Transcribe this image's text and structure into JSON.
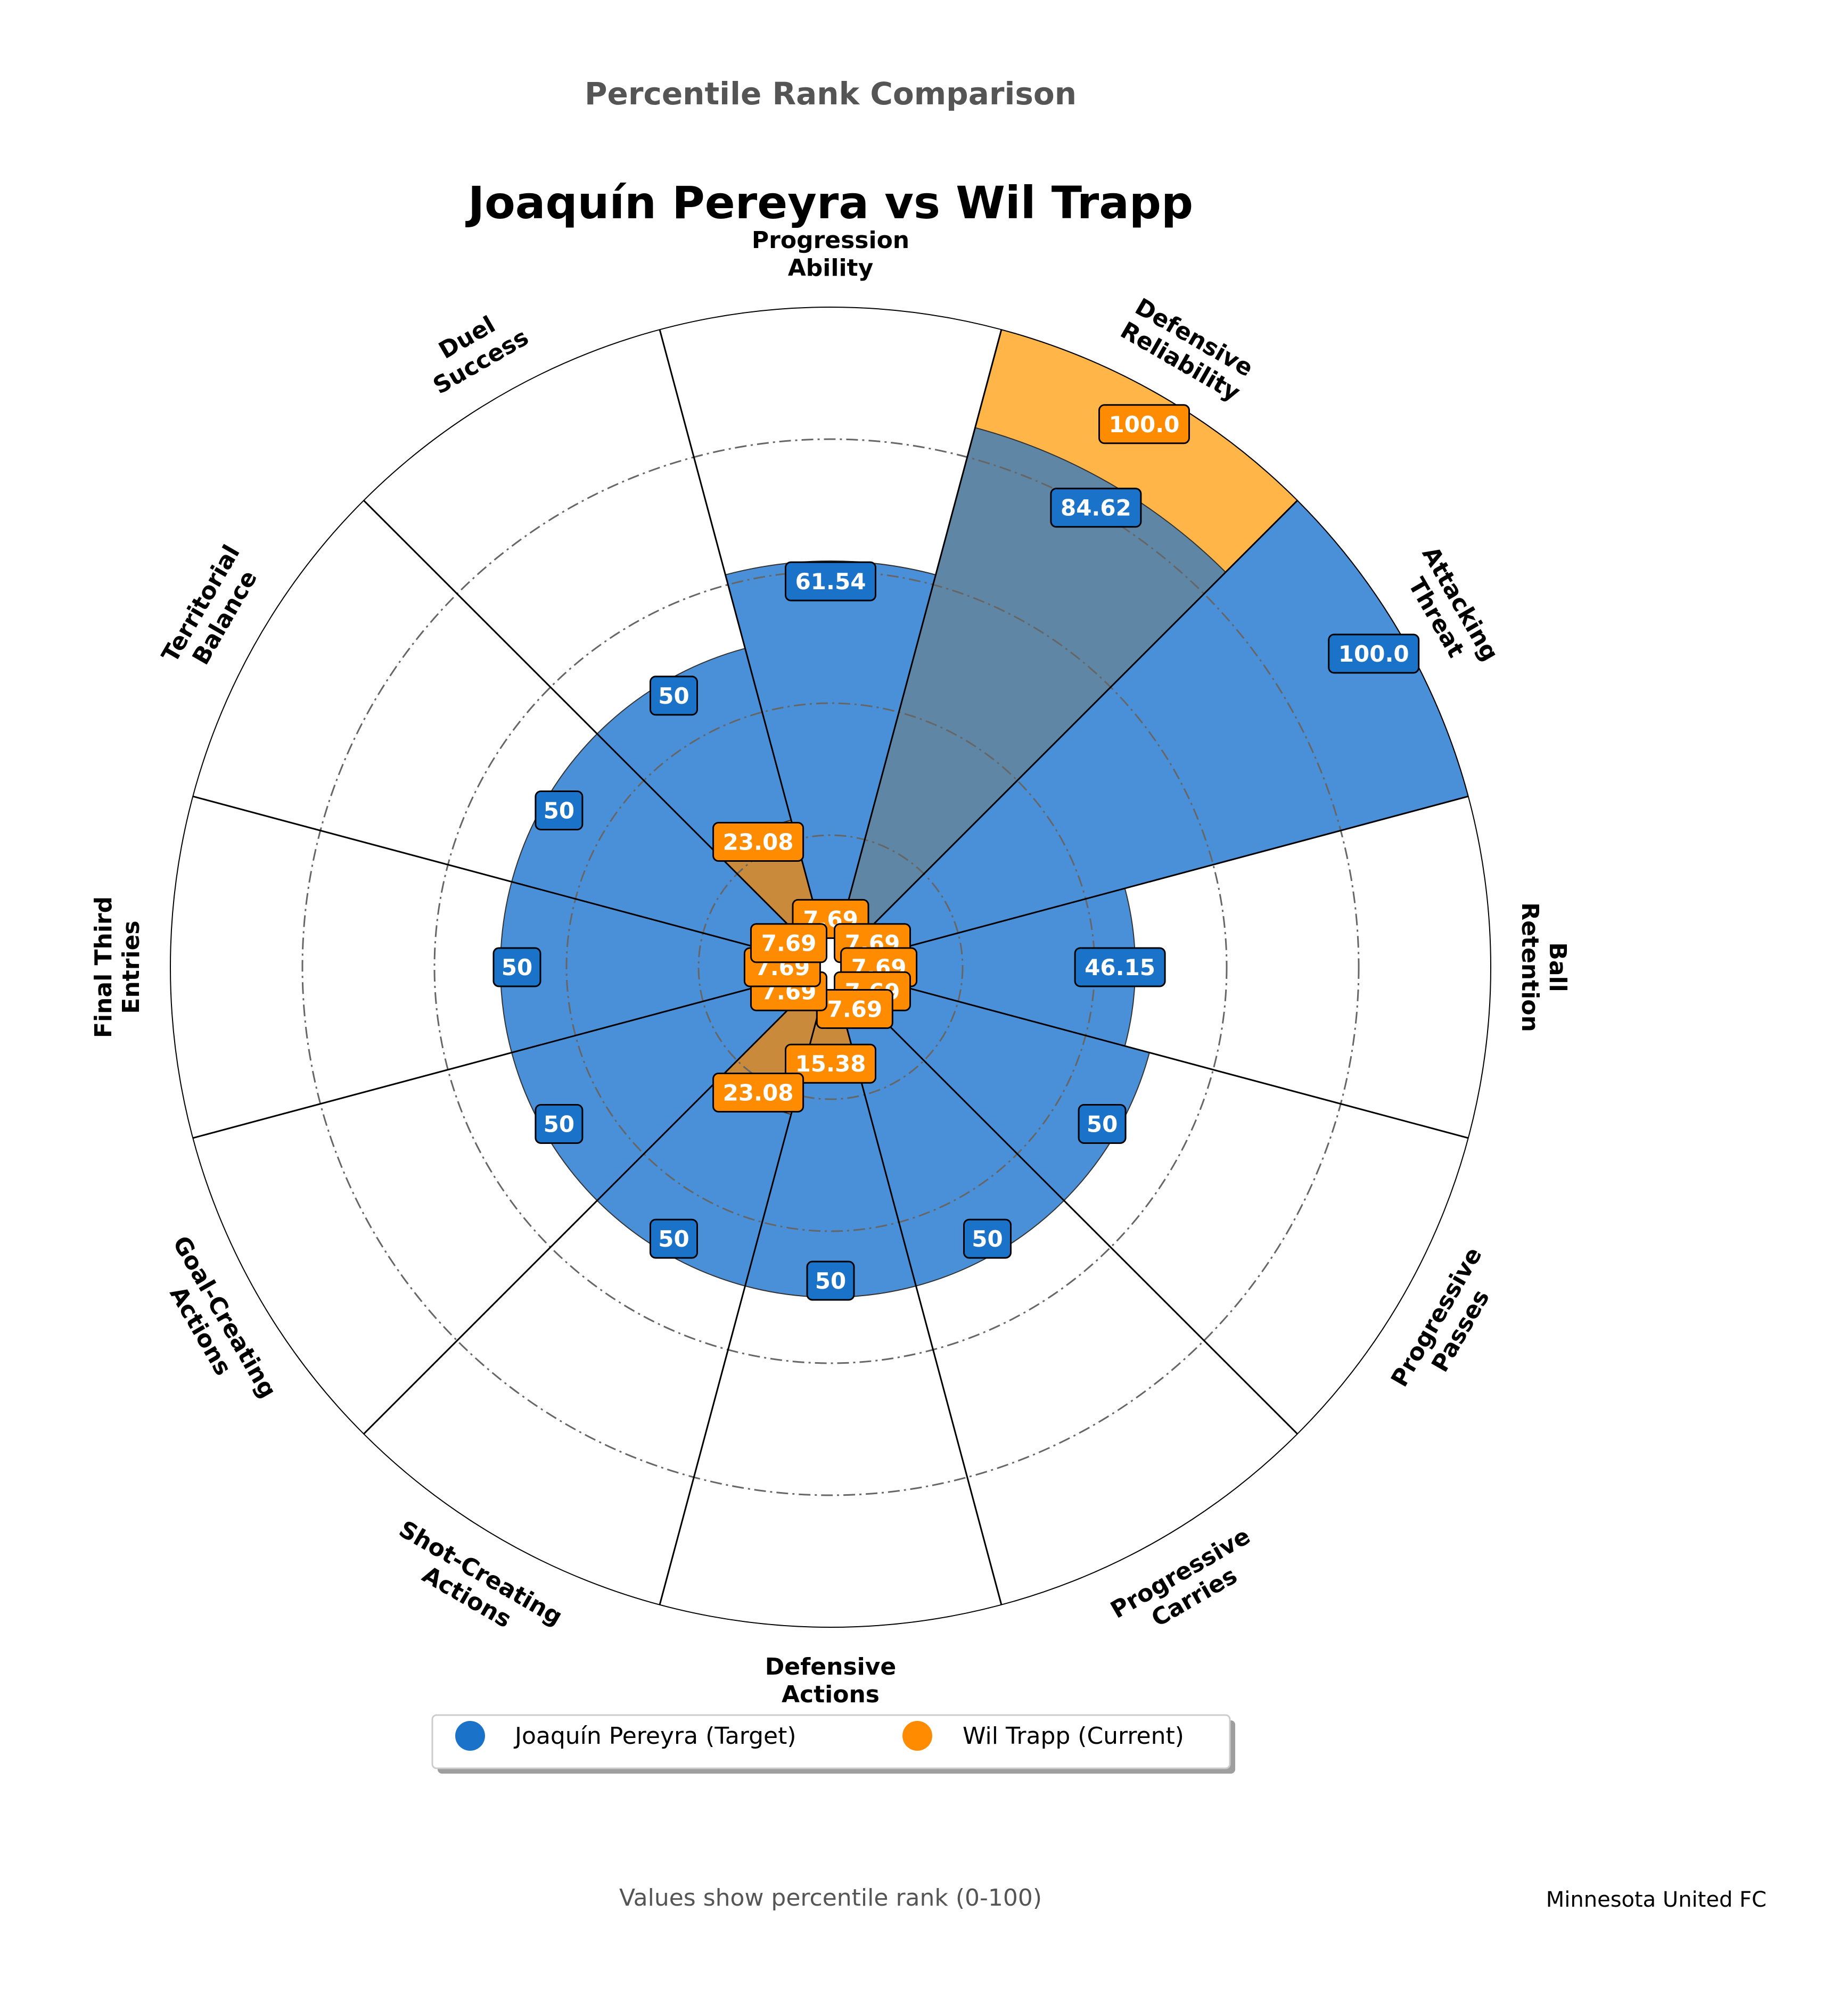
{
  "supertitle": "Percentile Rank Comparison",
  "title": "Joaquín Pereyra vs Wil Trapp",
  "footer": "Values show percentile rank (0-100)",
  "club": "Minnesota United FC",
  "colors": {
    "target_fill": "#4a90d9",
    "target_box": "#1a73c9",
    "current_fill": "#ff9800",
    "current_box": "#ff8c00",
    "overlap_fill": "#5f86a4",
    "grid": "#666666"
  },
  "legend": [
    {
      "label": "Joaquín Pereyra (Target)",
      "color": "#1a73c9"
    },
    {
      "label": "Wil Trapp (Current)",
      "color": "#ff8c00"
    }
  ],
  "chart_data": {
    "type": "polar-bar",
    "title": "Joaquín Pereyra vs Wil Trapp",
    "rlim": [
      0,
      100
    ],
    "rgrid": [
      20,
      40,
      60,
      80
    ],
    "categories": [
      "Progression Ability",
      "Defensive Reliability",
      "Attacking Threat",
      "Ball Retention",
      "Progressive Passes",
      "Progressive Carries",
      "Defensive Actions",
      "Shot-Creating Actions",
      "Goal-Creating Actions",
      "Final Third Entries",
      "Territorial Balance",
      "Duel Success"
    ],
    "label_lines": [
      [
        "Progression",
        "Ability"
      ],
      [
        "Defensive",
        "Reliability"
      ],
      [
        "Attacking",
        "Threat"
      ],
      [
        "Ball",
        "Retention"
      ],
      [
        "Progressive",
        "Passes"
      ],
      [
        "Progressive",
        "Carries"
      ],
      [
        "Defensive",
        "Actions"
      ],
      [
        "Shot-Creating",
        "Actions"
      ],
      [
        "Goal-Creating",
        "Actions"
      ],
      [
        "Final Third",
        "Entries"
      ],
      [
        "Territorial",
        "Balance"
      ],
      [
        "Duel",
        "Success"
      ]
    ],
    "series": [
      {
        "name": "Joaquín Pereyra (Target)",
        "values": [
          61.54,
          84.62,
          100.0,
          46.15,
          50,
          50,
          50,
          50,
          50,
          50,
          50,
          50
        ],
        "labels": [
          "61.54",
          "84.62",
          "100.0",
          "46.15",
          "50",
          "50",
          "50",
          "50",
          "50",
          "50",
          "50",
          "50"
        ]
      },
      {
        "name": "Wil Trapp (Current)",
        "values": [
          7.69,
          100.0,
          7.69,
          7.69,
          7.69,
          7.69,
          15.38,
          23.08,
          7.69,
          7.69,
          7.69,
          23.08
        ],
        "labels": [
          "7.69",
          "100.0",
          "7.69",
          "7.69",
          "7.69",
          "7.69",
          "15.38",
          "23.08",
          "7.69",
          "7.69",
          "7.69",
          "23.08"
        ]
      }
    ],
    "legend_position": "bottom-center"
  }
}
